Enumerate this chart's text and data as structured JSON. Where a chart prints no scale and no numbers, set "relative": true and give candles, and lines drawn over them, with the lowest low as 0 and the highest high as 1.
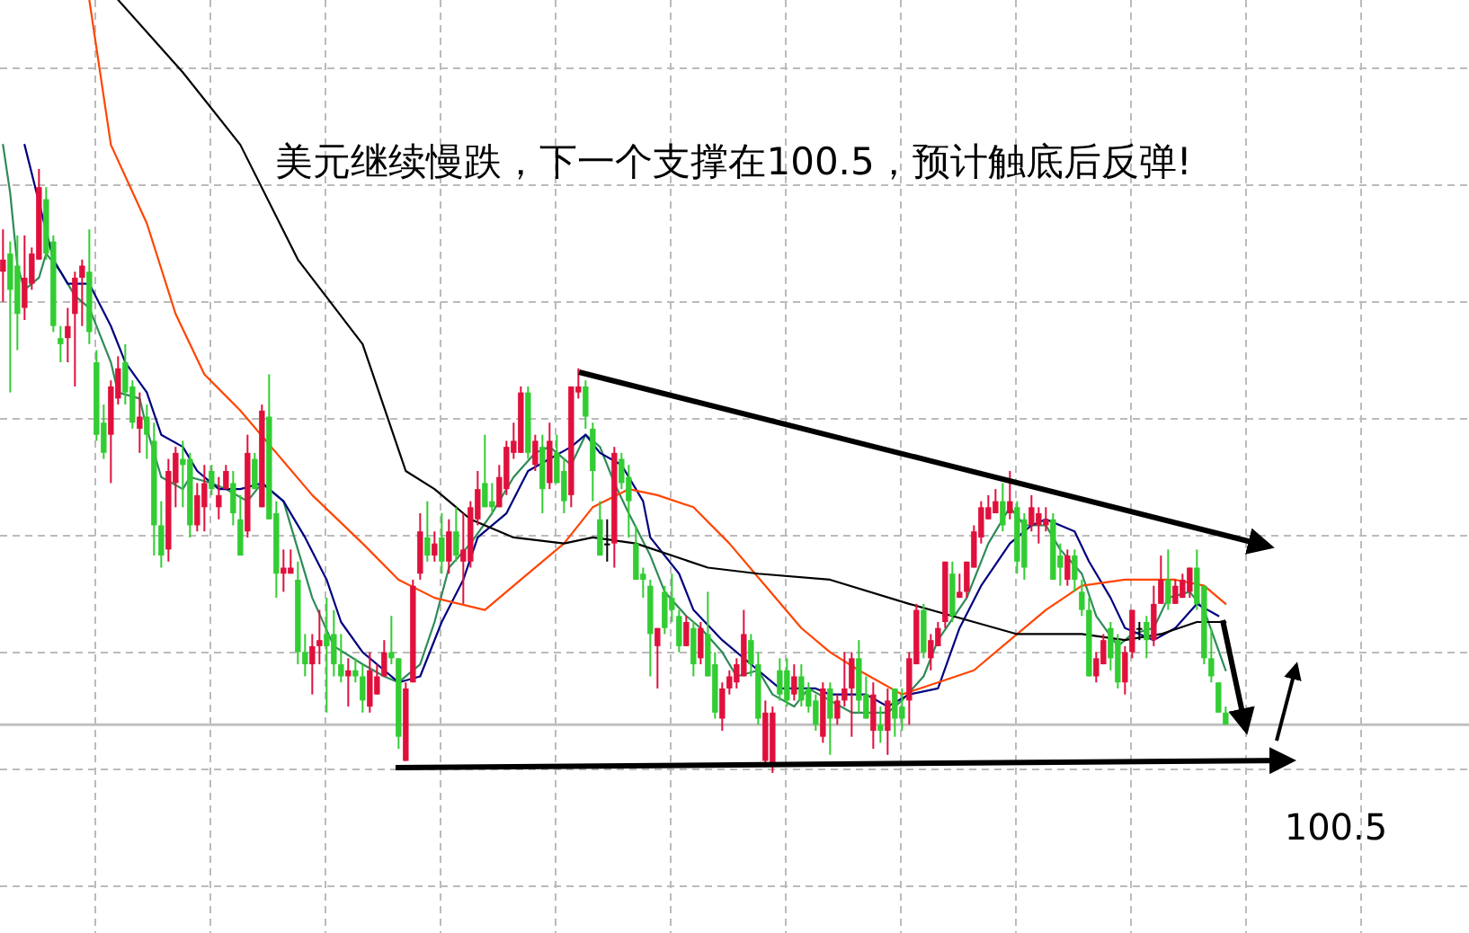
{
  "chart_data": {
    "type": "candlestick",
    "title": "美元继续慢跌，下一个支撑在100.5，预计触底后反弹!",
    "relative": true,
    "grid": true,
    "categories": [
      null,
      null,
      null,
      null,
      null,
      null,
      null,
      null,
      null,
      null,
      null,
      null,
      null,
      null,
      null,
      null,
      null,
      null,
      null,
      null,
      null,
      null,
      null,
      null,
      null,
      null,
      null,
      null,
      null,
      null,
      null,
      null,
      null,
      null,
      null,
      null,
      null,
      null,
      null,
      null,
      null,
      null,
      null,
      null,
      null,
      null,
      null,
      null,
      null,
      null,
      null,
      null,
      null,
      null,
      null,
      null,
      null,
      null,
      null,
      null,
      null,
      null,
      null,
      null,
      null,
      null,
      null,
      null,
      null,
      null,
      null,
      null,
      null,
      null,
      null,
      null,
      null,
      null,
      null,
      null,
      null,
      null,
      null,
      null,
      null,
      null,
      null,
      null,
      null,
      null,
      null,
      null,
      null,
      null,
      null,
      null,
      null,
      null,
      null,
      null,
      null,
      null,
      null,
      null,
      null,
      null,
      null,
      null,
      null,
      null,
      null,
      null,
      null,
      null,
      null,
      null,
      null,
      null,
      null,
      null,
      null,
      null,
      null,
      null,
      null,
      null,
      null,
      null,
      null,
      null,
      null,
      null,
      null,
      null,
      null,
      null,
      null,
      null,
      null,
      null,
      null,
      null,
      null,
      null,
      null,
      null,
      null,
      null,
      null,
      null,
      null,
      null,
      null,
      null,
      null,
      null,
      null,
      null,
      null,
      null,
      null,
      null,
      null,
      null,
      null,
      null,
      null,
      null,
      null,
      null,
      null
    ],
    "ohlc": [
      [
        0.83,
        0.9,
        0.78,
        0.85
      ],
      [
        0.86,
        0.88,
        0.63,
        0.8
      ],
      [
        0.84,
        0.89,
        0.7,
        0.76
      ],
      [
        0.77,
        0.89,
        0.75,
        0.82
      ],
      [
        0.81,
        0.87,
        0.8,
        0.86
      ],
      [
        0.85,
        1.0,
        0.85,
        0.97
      ],
      [
        0.95,
        0.97,
        0.85,
        0.86
      ],
      [
        0.88,
        0.89,
        0.73,
        0.74
      ],
      [
        0.72,
        0.74,
        0.68,
        0.71
      ],
      [
        0.72,
        0.77,
        0.68,
        0.74
      ],
      [
        0.76,
        0.83,
        0.64,
        0.82
      ],
      [
        0.82,
        0.85,
        0.74,
        0.84
      ],
      [
        0.83,
        0.9,
        0.71,
        0.73
      ],
      [
        0.68,
        0.7,
        0.55,
        0.56
      ],
      [
        0.58,
        0.61,
        0.52,
        0.53
      ],
      [
        0.56,
        0.65,
        0.48,
        0.64
      ],
      [
        0.62,
        0.69,
        0.61,
        0.67
      ],
      [
        0.68,
        0.71,
        0.61,
        0.63
      ],
      [
        0.64,
        0.65,
        0.57,
        0.58
      ],
      [
        0.57,
        0.63,
        0.53,
        0.59
      ],
      [
        0.59,
        0.61,
        0.52,
        0.56
      ],
      [
        0.55,
        0.58,
        0.36,
        0.41
      ],
      [
        0.41,
        0.45,
        0.34,
        0.36
      ],
      [
        0.37,
        0.52,
        0.35,
        0.5
      ],
      [
        0.48,
        0.54,
        0.44,
        0.53
      ],
      [
        0.52,
        0.55,
        0.44,
        0.51
      ],
      [
        0.52,
        0.53,
        0.39,
        0.41
      ],
      [
        0.41,
        0.48,
        0.4,
        0.46
      ],
      [
        0.44,
        0.51,
        0.4,
        0.48
      ],
      [
        0.5,
        0.51,
        0.46,
        0.47
      ],
      [
        0.44,
        0.49,
        0.42,
        0.46
      ],
      [
        0.47,
        0.51,
        0.47,
        0.5
      ],
      [
        0.48,
        0.5,
        0.41,
        0.43
      ],
      [
        0.42,
        0.46,
        0.36,
        0.36
      ],
      [
        0.4,
        0.56,
        0.39,
        0.53
      ],
      [
        0.52,
        0.53,
        0.47,
        0.47
      ],
      [
        0.44,
        0.61,
        0.44,
        0.6
      ],
      [
        0.59,
        0.66,
        0.42,
        0.42
      ],
      [
        0.43,
        0.45,
        0.29,
        0.33
      ],
      [
        0.33,
        0.37,
        0.3,
        0.34
      ],
      [
        0.33,
        0.37,
        0.33,
        0.34
      ],
      [
        0.32,
        0.35,
        0.18,
        0.2
      ],
      [
        0.2,
        0.23,
        0.16,
        0.18
      ],
      [
        0.18,
        0.23,
        0.13,
        0.21
      ],
      [
        0.21,
        0.27,
        0.18,
        0.22
      ],
      [
        0.23,
        0.29,
        0.1,
        0.21
      ],
      [
        0.23,
        0.27,
        0.16,
        0.18
      ],
      [
        0.18,
        0.23,
        0.15,
        0.16
      ],
      [
        0.16,
        0.19,
        0.11,
        0.17
      ],
      [
        0.17,
        0.19,
        0.15,
        0.16
      ],
      [
        0.16,
        0.18,
        0.1,
        0.12
      ],
      [
        0.11,
        0.2,
        0.1,
        0.17
      ],
      [
        0.13,
        0.18,
        0.13,
        0.16
      ],
      [
        0.16,
        0.22,
        0.16,
        0.2
      ],
      [
        0.2,
        0.26,
        0.18,
        0.19
      ],
      [
        0.19,
        0.19,
        0.04,
        0.06
      ],
      [
        0.02,
        0.15,
        0.02,
        0.14
      ],
      [
        0.15,
        0.32,
        0.15,
        0.31
      ],
      [
        0.33,
        0.43,
        0.32,
        0.4
      ],
      [
        0.39,
        0.45,
        0.35,
        0.36
      ],
      [
        0.36,
        0.4,
        0.35,
        0.38
      ],
      [
        0.39,
        0.43,
        0.33,
        0.35
      ],
      [
        0.35,
        0.42,
        0.33,
        0.4
      ],
      [
        0.4,
        0.44,
        0.35,
        0.36
      ],
      [
        0.35,
        0.43,
        0.28,
        0.37
      ],
      [
        0.35,
        0.45,
        0.34,
        0.44
      ],
      [
        0.42,
        0.5,
        0.41,
        0.47
      ],
      [
        0.48,
        0.56,
        0.44,
        0.44
      ],
      [
        0.45,
        0.48,
        0.43,
        0.44
      ],
      [
        0.44,
        0.51,
        0.44,
        0.49
      ],
      [
        0.47,
        0.55,
        0.46,
        0.54
      ],
      [
        0.53,
        0.58,
        0.52,
        0.55
      ],
      [
        0.53,
        0.64,
        0.53,
        0.63
      ],
      [
        0.63,
        0.64,
        0.52,
        0.53
      ],
      [
        0.51,
        0.56,
        0.5,
        0.55
      ],
      [
        0.54,
        0.56,
        0.43,
        0.47
      ],
      [
        0.48,
        0.58,
        0.47,
        0.55
      ],
      [
        0.53,
        0.56,
        0.48,
        0.48
      ],
      [
        0.5,
        0.52,
        0.43,
        0.45
      ],
      [
        0.46,
        0.64,
        0.44,
        0.64
      ],
      [
        0.63,
        0.67,
        0.62,
        0.64
      ],
      [
        0.64,
        0.65,
        0.57,
        0.59
      ],
      [
        0.57,
        0.58,
        0.45,
        0.5
      ],
      [
        0.42,
        0.45,
        0.36,
        0.36
      ],
      [
        0.38,
        0.42,
        0.35,
        0.38
      ],
      [
        0.38,
        0.54,
        0.34,
        0.53
      ],
      [
        0.52,
        0.53,
        0.47,
        0.48
      ],
      [
        0.49,
        0.51,
        0.39,
        0.45
      ],
      [
        0.38,
        0.41,
        0.32,
        0.32
      ],
      [
        0.33,
        0.34,
        0.29,
        0.32
      ],
      [
        0.31,
        0.32,
        0.16,
        0.23
      ],
      [
        0.21,
        0.24,
        0.14,
        0.24
      ],
      [
        0.3,
        0.31,
        0.23,
        0.24
      ],
      [
        0.29,
        0.33,
        0.25,
        0.27
      ],
      [
        0.26,
        0.27,
        0.2,
        0.21
      ],
      [
        0.21,
        0.26,
        0.21,
        0.25
      ],
      [
        0.24,
        0.25,
        0.16,
        0.18
      ],
      [
        0.19,
        0.25,
        0.18,
        0.24
      ],
      [
        0.23,
        0.3,
        0.16,
        0.16
      ],
      [
        0.18,
        0.2,
        0.09,
        0.1
      ],
      [
        0.09,
        0.15,
        0.07,
        0.14
      ],
      [
        0.14,
        0.17,
        0.13,
        0.16
      ],
      [
        0.15,
        0.19,
        0.14,
        0.18
      ],
      [
        0.16,
        0.27,
        0.16,
        0.23
      ],
      [
        0.22,
        0.23,
        0.16,
        0.18
      ],
      [
        0.18,
        0.2,
        0.08,
        0.09
      ],
      [
        0.02,
        0.12,
        0.01,
        0.1
      ],
      [
        0.01,
        0.11,
        0.0,
        0.1
      ],
      [
        0.17,
        0.19,
        0.12,
        0.13
      ],
      [
        0.17,
        0.19,
        0.11,
        0.12
      ],
      [
        0.13,
        0.18,
        0.12,
        0.16
      ],
      [
        0.16,
        0.18,
        0.11,
        0.12
      ],
      [
        0.14,
        0.15,
        0.1,
        0.11
      ],
      [
        0.12,
        0.13,
        0.07,
        0.08
      ],
      [
        0.06,
        0.15,
        0.05,
        0.14
      ],
      [
        0.14,
        0.15,
        0.03,
        0.09
      ],
      [
        0.09,
        0.13,
        0.08,
        0.12
      ],
      [
        0.12,
        0.2,
        0.11,
        0.14
      ],
      [
        0.14,
        0.2,
        0.06,
        0.19
      ],
      [
        0.19,
        0.22,
        0.1,
        0.12
      ],
      [
        0.13,
        0.16,
        0.09,
        0.09
      ],
      [
        0.07,
        0.15,
        0.04,
        0.13
      ],
      [
        0.08,
        0.11,
        0.05,
        0.07
      ],
      [
        0.07,
        0.14,
        0.03,
        0.12
      ],
      [
        0.14,
        0.14,
        0.06,
        0.09
      ],
      [
        0.11,
        0.14,
        0.07,
        0.09
      ],
      [
        0.12,
        0.2,
        0.08,
        0.19
      ],
      [
        0.18,
        0.28,
        0.18,
        0.27
      ],
      [
        0.27,
        0.28,
        0.19,
        0.2
      ],
      [
        0.19,
        0.23,
        0.17,
        0.22
      ],
      [
        0.21,
        0.25,
        0.21,
        0.24
      ],
      [
        0.25,
        0.35,
        0.24,
        0.35
      ],
      [
        0.33,
        0.35,
        0.25,
        0.26
      ],
      [
        0.29,
        0.33,
        0.29,
        0.3
      ],
      [
        0.3,
        0.35,
        0.29,
        0.35
      ],
      [
        0.34,
        0.41,
        0.34,
        0.4
      ],
      [
        0.39,
        0.45,
        0.38,
        0.44
      ],
      [
        0.42,
        0.46,
        0.42,
        0.44
      ],
      [
        0.43,
        0.47,
        0.43,
        0.45
      ],
      [
        0.45,
        0.48,
        0.4,
        0.41
      ],
      [
        0.43,
        0.5,
        0.42,
        0.45
      ],
      [
        0.44,
        0.45,
        0.33,
        0.35
      ],
      [
        0.42,
        0.43,
        0.32,
        0.34
      ],
      [
        0.41,
        0.46,
        0.4,
        0.44
      ],
      [
        0.41,
        0.44,
        0.38,
        0.43
      ],
      [
        0.41,
        0.44,
        0.4,
        0.42
      ],
      [
        0.42,
        0.43,
        0.32,
        0.32
      ],
      [
        0.36,
        0.38,
        0.31,
        0.34
      ],
      [
        0.32,
        0.37,
        0.31,
        0.36
      ],
      [
        0.36,
        0.37,
        0.3,
        0.32
      ],
      [
        0.3,
        0.32,
        0.26,
        0.27
      ],
      [
        0.27,
        0.29,
        0.16,
        0.16
      ],
      [
        0.16,
        0.2,
        0.15,
        0.19
      ],
      [
        0.18,
        0.23,
        0.18,
        0.22
      ],
      [
        0.24,
        0.25,
        0.17,
        0.19
      ],
      [
        0.22,
        0.23,
        0.14,
        0.15
      ],
      [
        0.15,
        0.21,
        0.13,
        0.2
      ],
      [
        0.2,
        0.27,
        0.19,
        0.27
      ],
      [
        0.24,
        0.25,
        0.22,
        0.24
      ],
      [
        0.25,
        0.26,
        0.19,
        0.22
      ],
      [
        0.22,
        0.31,
        0.21,
        0.28
      ],
      [
        0.28,
        0.36,
        0.28,
        0.32
      ],
      [
        0.32,
        0.37,
        0.27,
        0.28
      ],
      [
        0.28,
        0.32,
        0.28,
        0.31
      ],
      [
        0.29,
        0.33,
        0.29,
        0.32
      ],
      [
        0.3,
        0.34,
        0.29,
        0.34
      ],
      [
        0.34,
        0.37,
        0.27,
        0.28
      ],
      [
        0.31,
        0.31,
        0.18,
        0.19
      ],
      [
        0.19,
        0.24,
        0.15,
        0.16
      ],
      [
        0.15,
        0.15,
        0.1,
        0.1
      ],
      [
        0.1,
        0.11,
        0.08,
        0.08
      ]
    ],
    "ref_lines": [
      {
        "axis": "y",
        "value": 0.08,
        "color": "#c0c0c0"
      }
    ],
    "annotations": [
      "100.5"
    ],
    "series": [
      {
        "type": "line",
        "color": "#2e8b57",
        "values": [
          1.04,
          0.96,
          0.84,
          0.8,
          null,
          0.82,
          0.86,
          null,
          0.83,
          null,
          0.79,
          null,
          0.77,
          null,
          null,
          0.68,
          0.63,
          null,
          null,
          0.62,
          0.57,
          null,
          0.49,
          null,
          null,
          0.47,
          0.49,
          null,
          null,
          0.48,
          null,
          0.47,
          null,
          null,
          0.45,
          null,
          0.48,
          null,
          null,
          0.45,
          null,
          0.37,
          null,
          0.29,
          null,
          null,
          0.21,
          null,
          null,
          null,
          0.18,
          null,
          null,
          0.16,
          null,
          0.15,
          null,
          null,
          0.18,
          null,
          0.25,
          null,
          0.34,
          null,
          null,
          0.38,
          null,
          null,
          0.43,
          null,
          null,
          0.49,
          null,
          null,
          0.53,
          null,
          0.54,
          null,
          null,
          0.51,
          null,
          0.56,
          null,
          0.54,
          null,
          0.48,
          null,
          0.43,
          null,
          null,
          0.36,
          null,
          0.3,
          null,
          null,
          0.26,
          null,
          0.24,
          null,
          null,
          0.2,
          null,
          0.16,
          null,
          null,
          0.17,
          null,
          0.13,
          null,
          null,
          0.11,
          null,
          0.14,
          null,
          null,
          0.12,
          null,
          null,
          0.1,
          null,
          null,
          null,
          null,
          0.1,
          null,
          0.12,
          null,
          null,
          0.16,
          null,
          0.22,
          null,
          null,
          null,
          0.29,
          null,
          null,
          0.38,
          null,
          null,
          0.44,
          null,
          0.41,
          null,
          null,
          0.41,
          null,
          0.37,
          null,
          null,
          0.33,
          null,
          0.26,
          null,
          null,
          0.21,
          null,
          0.23,
          null,
          null,
          0.24,
          null,
          0.29,
          null,
          null,
          0.3,
          null,
          0.27,
          null,
          null,
          0.17
        ]
      },
      {
        "type": "line",
        "color": "#000080",
        "values": [
          null,
          null,
          null,
          1.04,
          null,
          null,
          null,
          0.85,
          null,
          0.81,
          null,
          null,
          0.81,
          null,
          null,
          0.74,
          null,
          0.68,
          null,
          null,
          0.63,
          null,
          0.56,
          null,
          null,
          0.54,
          null,
          0.5,
          null,
          null,
          0.47,
          null,
          null,
          0.47,
          null,
          null,
          0.48,
          null,
          null,
          0.45,
          null,
          null,
          0.39,
          null,
          null,
          0.32,
          null,
          0.25,
          null,
          null,
          0.2,
          null,
          null,
          0.17,
          null,
          0.15,
          null,
          null,
          0.16,
          null,
          null,
          0.25,
          null,
          null,
          0.32,
          null,
          0.39,
          null,
          null,
          null,
          0.43,
          null,
          null,
          0.5,
          null,
          null,
          0.52,
          null,
          null,
          0.54,
          null,
          0.56,
          null,
          0.53,
          null,
          null,
          0.51,
          null,
          null,
          0.45,
          0.39,
          null,
          null,
          null,
          0.33,
          null,
          0.27,
          null,
          null,
          null,
          0.22,
          null,
          null,
          null,
          null,
          0.17,
          null,
          null,
          0.14,
          null,
          null,
          null,
          null,
          0.14,
          null,
          0.13,
          null,
          null,
          null,
          null,
          0.13,
          null,
          null,
          0.11,
          null,
          null,
          0.13,
          null,
          null,
          null,
          0.14,
          null,
          null,
          0.24,
          null,
          null,
          0.31,
          null,
          null,
          null,
          0.38,
          null,
          null,
          0.41,
          null,
          0.42,
          null,
          null,
          null,
          0.4,
          null,
          0.35,
          null,
          null,
          0.29,
          null,
          0.24,
          null,
          null,
          null,
          0.22,
          null,
          null,
          0.24,
          null,
          null,
          0.28,
          null,
          null,
          0.26,
          null
        ]
      },
      {
        "type": "line",
        "color": "#ff4500",
        "values": [
          null,
          null,
          null,
          null,
          null,
          null,
          null,
          null,
          null,
          null,
          null,
          null,
          1.28,
          null,
          null,
          1.04,
          null,
          null,
          null,
          null,
          0.91,
          null,
          null,
          null,
          0.76,
          null,
          null,
          null,
          0.66,
          null,
          null,
          null,
          null,
          0.6,
          null,
          null,
          null,
          null,
          0.53,
          null,
          null,
          null,
          null,
          0.46,
          null,
          null,
          null,
          null,
          null,
          null,
          0.38,
          null,
          null,
          null,
          null,
          0.32,
          null,
          null,
          null,
          null,
          0.29,
          null,
          null,
          null,
          null,
          null,
          null,
          0.27,
          null,
          null,
          null,
          null,
          0.32,
          null,
          null,
          null,
          null,
          null,
          0.38,
          null,
          null,
          null,
          0.44,
          null,
          null,
          null,
          null,
          0.47,
          null,
          null,
          null,
          0.46,
          null,
          null,
          null,
          null,
          0.44,
          null,
          null,
          null,
          null,
          0.38,
          null,
          null,
          null,
          null,
          0.31,
          null,
          null,
          null,
          null,
          0.24,
          null,
          null,
          null,
          0.2,
          null,
          null,
          null,
          0.17,
          null,
          null,
          null,
          null,
          null,
          0.13,
          null,
          null,
          null,
          null,
          0.15,
          null,
          null,
          null,
          null,
          0.17,
          null,
          null,
          null,
          null,
          0.22,
          null,
          null,
          null,
          null,
          0.27,
          null,
          null,
          null,
          null,
          0.31,
          null,
          null,
          null,
          null,
          null,
          0.32,
          null,
          null,
          null,
          null,
          null,
          null,
          0.32,
          null,
          null,
          null,
          0.31,
          null,
          null,
          0.28
        ]
      },
      {
        "type": "line",
        "color": "#000000",
        "values": [
          null,
          null,
          null,
          null,
          null,
          null,
          null,
          null,
          null,
          null,
          null,
          null,
          null,
          null,
          null,
          null,
          1.28,
          null,
          null,
          null,
          null,
          null,
          null,
          null,
          null,
          1.16,
          null,
          null,
          null,
          null,
          null,
          null,
          null,
          1.04,
          null,
          null,
          null,
          null,
          null,
          null,
          null,
          0.85,
          null,
          null,
          null,
          null,
          null,
          null,
          null,
          null,
          0.71,
          null,
          null,
          null,
          null,
          null,
          0.5,
          null,
          null,
          null,
          0.47,
          null,
          null,
          null,
          null,
          0.42,
          null,
          null,
          null,
          null,
          null,
          0.39,
          null,
          null,
          null,
          null,
          null,
          null,
          0.38,
          null,
          null,
          null,
          0.39,
          null,
          null,
          null,
          null,
          null,
          0.38,
          null,
          null,
          null,
          null,
          0.36,
          null,
          null,
          null,
          null,
          0.34,
          null,
          null,
          null,
          null,
          null,
          null,
          0.33,
          null,
          null,
          null,
          null,
          null,
          null,
          null,
          null,
          null,
          0.32,
          null,
          null,
          null,
          null,
          null,
          null,
          null,
          null,
          null,
          null,
          0.28,
          null,
          null,
          null,
          null,
          null,
          null,
          null,
          null,
          0.25,
          null,
          null,
          null,
          null,
          null,
          0.23,
          null,
          null,
          null,
          null,
          null,
          null,
          null,
          null,
          0.23,
          null,
          null,
          null,
          null,
          null,
          0.22,
          null,
          null,
          null,
          null,
          0.23,
          null,
          null,
          null,
          null,
          0.25,
          null,
          null,
          null,
          0.25
        ]
      }
    ]
  }
}
